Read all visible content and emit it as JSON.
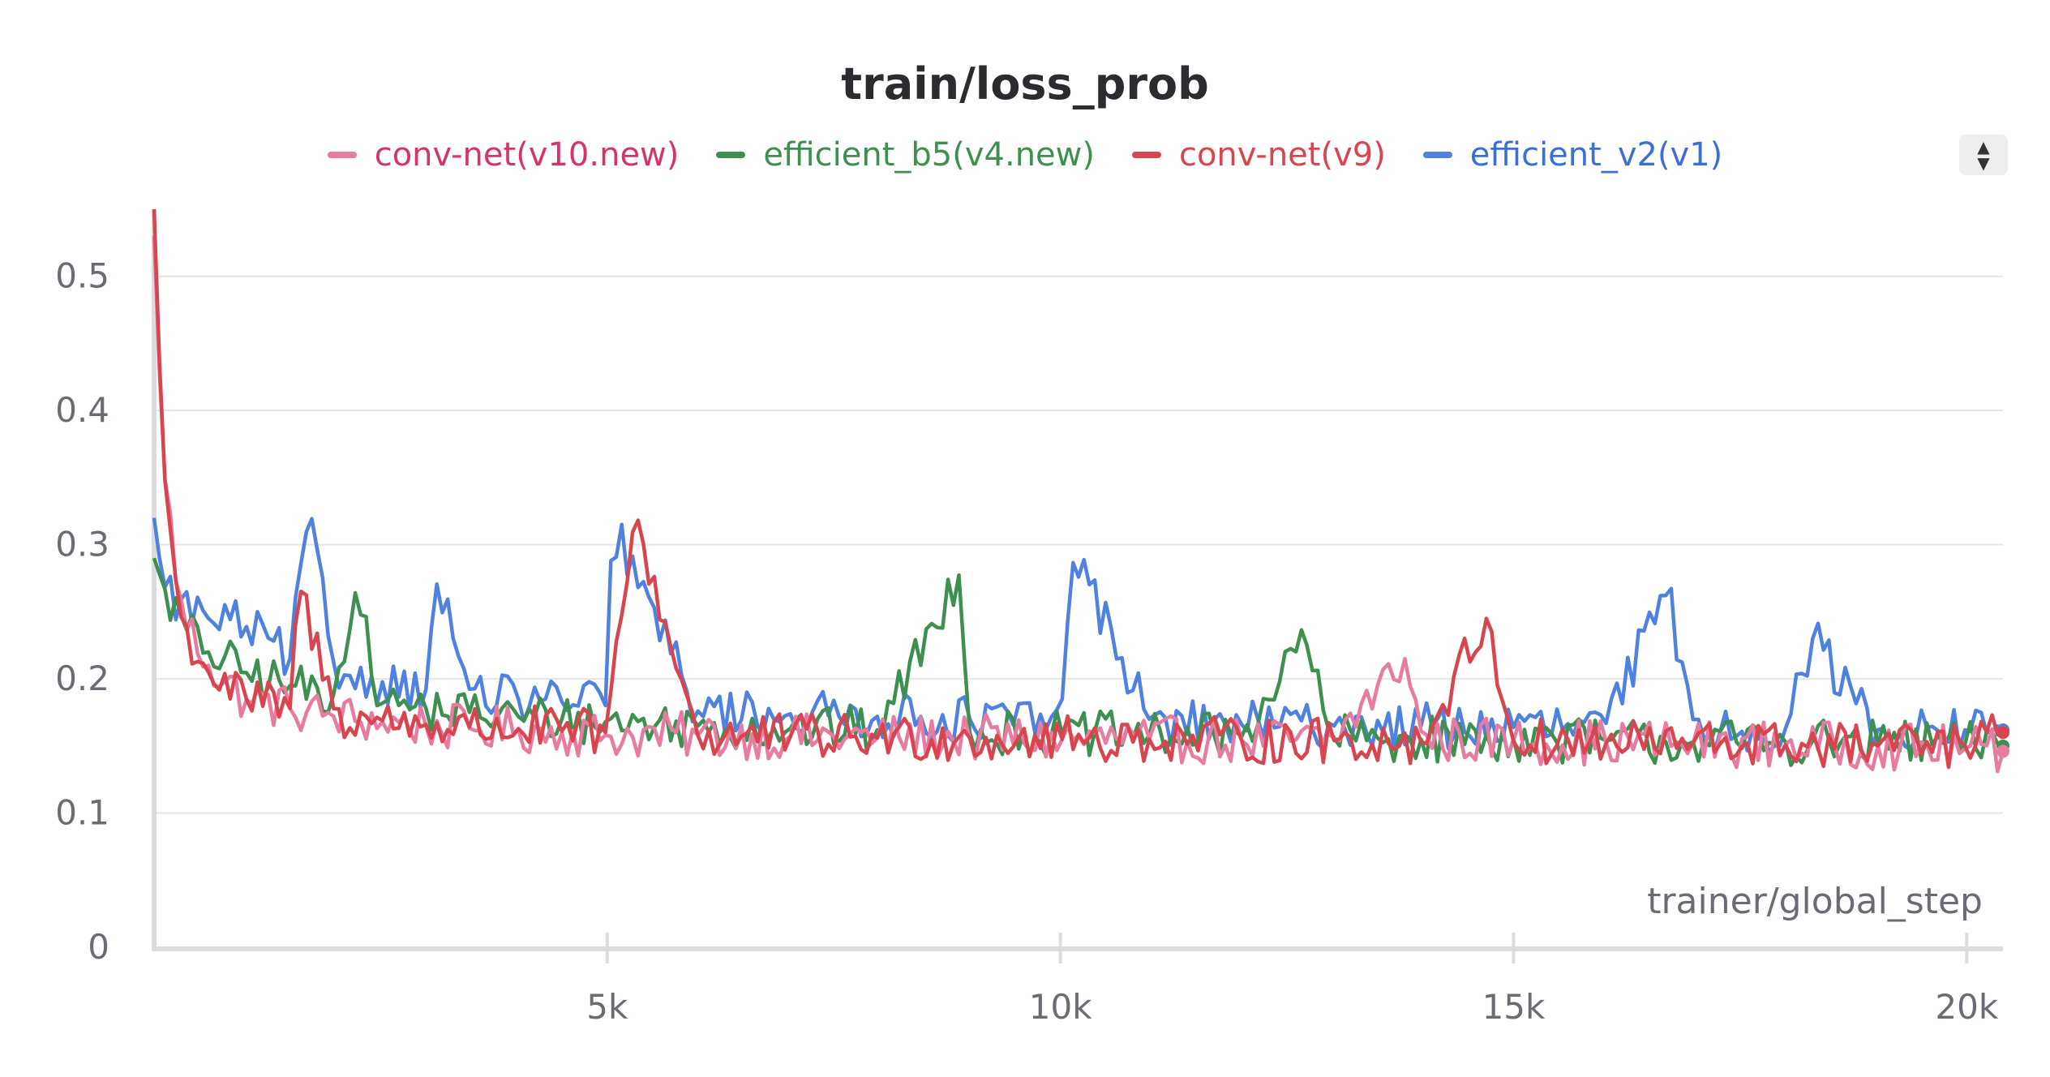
{
  "chart_data": {
    "type": "line",
    "title": "train/loss_prob",
    "xlabel": "trainer/global_step",
    "ylabel": "",
    "xlim": [
      0,
      20400
    ],
    "ylim": [
      0,
      0.55
    ],
    "yticks": [
      0,
      0.1,
      0.2,
      0.3,
      0.4,
      0.5
    ],
    "yticklabels": [
      "0",
      "0.1",
      "0.2",
      "0.3",
      "0.4",
      "0.5"
    ],
    "xticks": [
      5000,
      10000,
      15000,
      20000
    ],
    "xticklabels": [
      "5k",
      "10k",
      "15k",
      "20k"
    ],
    "grid": true,
    "legend_position": "top-center",
    "series": [
      {
        "name": "conv-net(v10.new)",
        "color": "#e87ba0",
        "text_color": "#d6336c",
        "x": [
          0,
          100,
          300,
          600,
          1000,
          1500,
          2000,
          2500,
          3000,
          3500,
          4000,
          4500,
          5000,
          6000,
          7000,
          8000,
          9000,
          10000,
          11000,
          12000,
          13000,
          13800,
          14000,
          15000,
          16000,
          17000,
          18000,
          19000,
          20000,
          20400
        ],
        "y": [
          0.53,
          0.36,
          0.25,
          0.21,
          0.185,
          0.178,
          0.172,
          0.168,
          0.165,
          0.163,
          0.162,
          0.16,
          0.158,
          0.158,
          0.157,
          0.156,
          0.156,
          0.155,
          0.155,
          0.154,
          0.154,
          0.215,
          0.155,
          0.154,
          0.153,
          0.152,
          0.151,
          0.15,
          0.148,
          0.146
        ]
      },
      {
        "name": "efficient_b5(v4.new)",
        "color": "#3d9050",
        "text_color": "#3d9050",
        "x": [
          0,
          100,
          300,
          600,
          1000,
          1500,
          2000,
          2200,
          2500,
          3000,
          3500,
          4000,
          4500,
          5000,
          6000,
          7000,
          8000,
          8900,
          9000,
          10000,
          11000,
          12000,
          12700,
          13000,
          14000,
          15000,
          16000,
          17000,
          18000,
          19000,
          20000,
          20400
        ],
        "y": [
          0.29,
          0.27,
          0.24,
          0.22,
          0.205,
          0.195,
          0.188,
          0.27,
          0.182,
          0.178,
          0.175,
          0.172,
          0.17,
          0.168,
          0.165,
          0.163,
          0.162,
          0.28,
          0.16,
          0.159,
          0.158,
          0.157,
          0.23,
          0.156,
          0.155,
          0.155,
          0.154,
          0.153,
          0.153,
          0.152,
          0.151,
          0.15
        ]
      },
      {
        "name": "conv-net(v9)",
        "color": "#d8454e",
        "text_color": "#d8454e",
        "x": [
          0,
          100,
          300,
          600,
          1000,
          1500,
          1600,
          2000,
          2500,
          3000,
          3500,
          4000,
          4500,
          5000,
          5300,
          6000,
          7000,
          8000,
          9000,
          10000,
          11000,
          12000,
          13000,
          14000,
          14700,
          15000,
          16000,
          17000,
          18000,
          19000,
          20000,
          20400
        ],
        "y": [
          0.55,
          0.36,
          0.24,
          0.205,
          0.185,
          0.178,
          0.27,
          0.173,
          0.169,
          0.166,
          0.164,
          0.163,
          0.161,
          0.16,
          0.32,
          0.158,
          0.157,
          0.156,
          0.156,
          0.155,
          0.155,
          0.154,
          0.154,
          0.153,
          0.245,
          0.153,
          0.152,
          0.152,
          0.151,
          0.15,
          0.15,
          0.16
        ]
      },
      {
        "name": "efficient_v2(v1)",
        "color": "#4f82e0",
        "text_color": "#3b6fd8",
        "x": [
          0,
          100,
          300,
          600,
          1000,
          1500,
          1700,
          2000,
          2500,
          3000,
          3100,
          3500,
          4000,
          4500,
          5000,
          5050,
          6000,
          7000,
          8000,
          9000,
          10000,
          10150,
          11000,
          12000,
          13000,
          14000,
          15000,
          16000,
          16700,
          17000,
          18000,
          18300,
          19000,
          20000,
          20400
        ],
        "y": [
          0.32,
          0.27,
          0.255,
          0.245,
          0.24,
          0.215,
          0.32,
          0.205,
          0.198,
          0.192,
          0.275,
          0.188,
          0.185,
          0.183,
          0.18,
          0.315,
          0.176,
          0.174,
          0.172,
          0.17,
          0.168,
          0.295,
          0.167,
          0.166,
          0.165,
          0.165,
          0.164,
          0.164,
          0.265,
          0.163,
          0.163,
          0.23,
          0.162,
          0.162,
          0.162
        ]
      }
    ]
  },
  "ui": {
    "legend_toggle_up": "▲",
    "legend_toggle_down": "▼"
  }
}
